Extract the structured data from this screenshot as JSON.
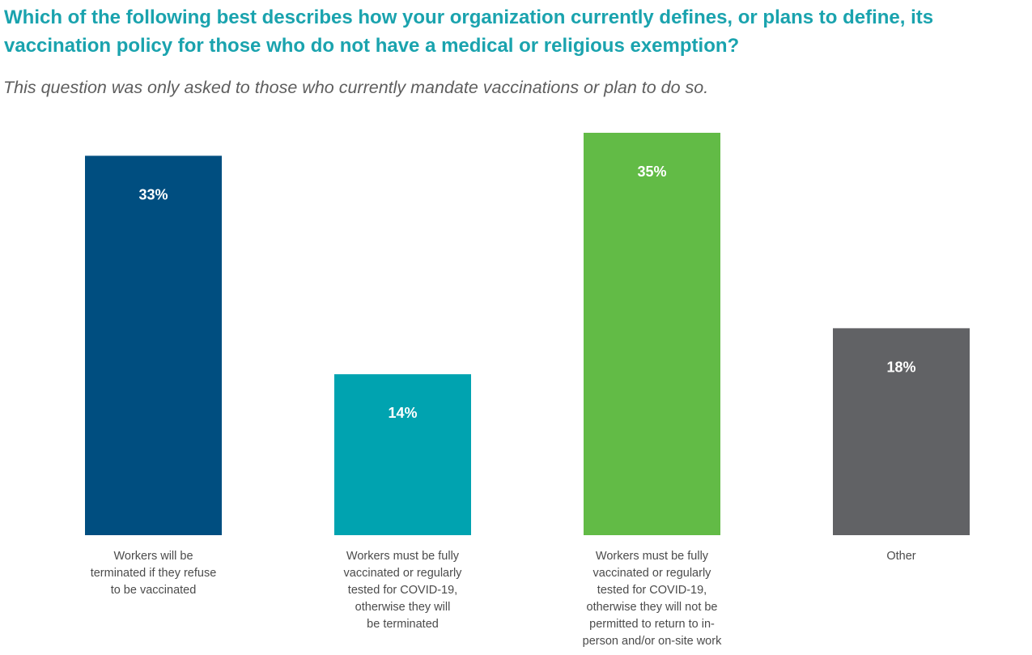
{
  "header": {
    "title": "Which of the following best describes how your organization currently defines, or plans to define, its vaccination policy for those who do not have a medical or religious exemption?",
    "subtitle": "This question was only asked to those who currently mandate vaccinations or plan to do so."
  },
  "chart_data": {
    "type": "bar",
    "title": "Which of the following best describes how your organization currently defines, or plans to define, its vaccination policy for those who do not have a medical or religious exemption?",
    "subtitle": "This question was only asked to those who currently mandate vaccinations or plan to do so.",
    "categories": [
      "Workers will be\nterminated if they refuse\nto be vaccinated",
      "Workers must be fully\nvaccinated or regularly\ntested for COVID-19,\notherwise they will\nbe terminated",
      "Workers must be fully\nvaccinated or regularly\ntested for COVID-19,\notherwise they will not be\npermitted to return to in-\nperson and/or on-site work",
      "Other"
    ],
    "values": [
      33,
      14,
      35,
      18
    ],
    "value_labels": [
      "33%",
      "14%",
      "35%",
      "18%"
    ],
    "unit": "%",
    "colors": [
      "#004e80",
      "#00a3b0",
      "#62bb46",
      "#616265"
    ],
    "ylim": [
      0,
      35
    ],
    "grid": false,
    "legend": "none",
    "xlabel": "",
    "ylabel": ""
  }
}
